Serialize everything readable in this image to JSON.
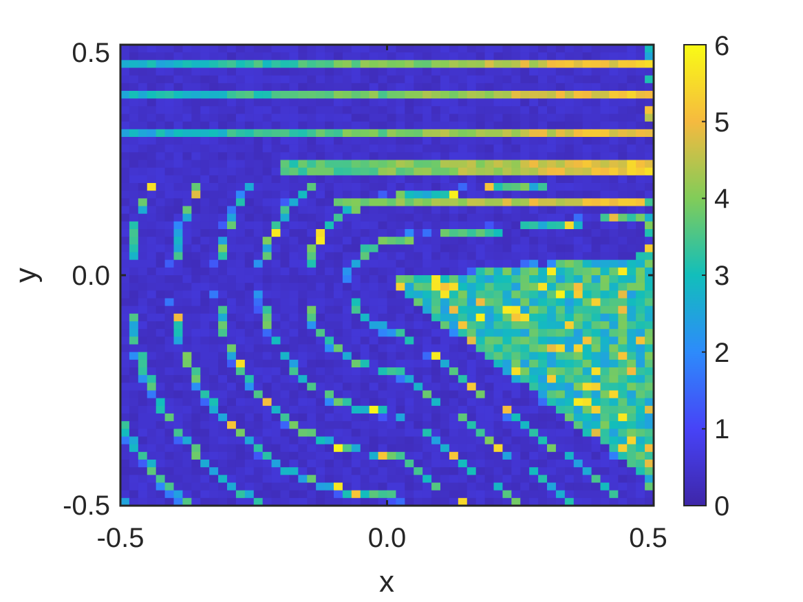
{
  "chart_data": {
    "type": "heatmap",
    "title": "",
    "xlabel": "x",
    "ylabel": "y",
    "xlim": [
      -0.5,
      0.5
    ],
    "ylim": [
      -0.5,
      0.5
    ],
    "xticks": [
      -0.5,
      0.0,
      0.5
    ],
    "yticks": [
      -0.5,
      0.0,
      0.5
    ],
    "xtick_labels": [
      "-0.5",
      "0.0",
      "0.5"
    ],
    "ytick_labels": [
      "-0.5",
      "0.0",
      "0.5"
    ],
    "grid_resolution": [
      60,
      60
    ],
    "colorbar": {
      "colormap": "parula",
      "range": [
        0,
        6
      ],
      "ticks": [
        0,
        1,
        2,
        3,
        4,
        5,
        6
      ],
      "tick_labels": [
        "0",
        "1",
        "2",
        "3",
        "4",
        "5",
        "6"
      ],
      "placement": "right"
    },
    "pattern_description": "Stripe pattern: five horizontal stripes in the upper region (y approximately 0.46, 0.39, 0.31, 0.23, 0.16) with values rising toward the right (up to about 5.5); curved chevron stripes opening to the right around (0, 0); diagonal stripes descending to the lower right in the lower region; values mostly 2 to 4 on stripes, background near 0.3",
    "value_range": [
      0,
      6
    ]
  },
  "colors": {
    "colormap_stops": [
      "#3e26a8",
      "#4743f7",
      "#2d8bfb",
      "#12bebb",
      "#81cc59",
      "#f5ba3f",
      "#f9fb15"
    ],
    "axes_frame": "#262626",
    "background": "#ffffff"
  }
}
